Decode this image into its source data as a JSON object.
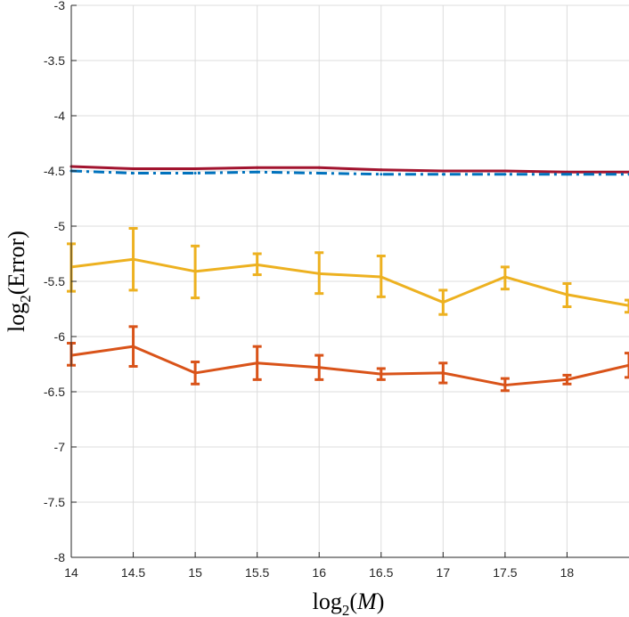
{
  "chart_data": {
    "type": "line",
    "title": "",
    "xlabel": "log2(M)",
    "ylabel": "log2(Error)",
    "xlabel_parts": {
      "fn": "log",
      "sub": "2",
      "open": "(",
      "var": "M",
      "close": ")"
    },
    "ylabel_parts": {
      "fn": "log",
      "sub": "2",
      "open": "(",
      "var": "Error",
      "close": ")"
    },
    "xlim": [
      14,
      18.5
    ],
    "ylim": [
      -8,
      -3
    ],
    "grid": true,
    "xticks": [
      14,
      14.5,
      15,
      15.5,
      16,
      16.5,
      17,
      17.5,
      18
    ],
    "xtick_labels": [
      "14",
      "14.5",
      "15",
      "15.5",
      "16",
      "16.5",
      "17",
      "17.5",
      "18"
    ],
    "yticks": [
      -3,
      -3.5,
      -4,
      -4.5,
      -5,
      -5.5,
      -6,
      -6.5,
      -7,
      -7.5,
      -8
    ],
    "ytick_labels": [
      "-3",
      "-3.5",
      "-4",
      "-4.5",
      "-5",
      "-5.5",
      "-6",
      "-6.5",
      "-7",
      "-7.5",
      "-8"
    ],
    "x": [
      14,
      14.5,
      15,
      15.5,
      16,
      16.5,
      17,
      17.5,
      18,
      18.5
    ],
    "series": [
      {
        "name": "series-dark-red",
        "color": "#A2142F",
        "style": "solid",
        "values": [
          -4.46,
          -4.48,
          -4.48,
          -4.47,
          -4.47,
          -4.49,
          -4.5,
          -4.5,
          -4.51,
          -4.51
        ]
      },
      {
        "name": "series-blue-dashdot",
        "color": "#0072BD",
        "style": "dashdot",
        "values": [
          -4.5,
          -4.52,
          -4.52,
          -4.51,
          -4.52,
          -4.53,
          -4.53,
          -4.53,
          -4.53,
          -4.53
        ]
      },
      {
        "name": "series-yellow",
        "color": "#EDB120",
        "style": "solid",
        "values": [
          -5.37,
          -5.3,
          -5.41,
          -5.35,
          -5.43,
          -5.46,
          -5.69,
          -5.46,
          -5.62,
          -5.72
        ],
        "err_low": [
          -5.59,
          -5.58,
          -5.65,
          -5.44,
          -5.61,
          -5.64,
          -5.8,
          -5.57,
          -5.73,
          -5.78
        ],
        "err_high": [
          -5.16,
          -5.02,
          -5.18,
          -5.25,
          -5.24,
          -5.27,
          -5.58,
          -5.37,
          -5.52,
          -5.67
        ]
      },
      {
        "name": "series-orange",
        "color": "#D95319",
        "style": "solid",
        "values": [
          -6.17,
          -6.09,
          -6.33,
          -6.24,
          -6.28,
          -6.34,
          -6.33,
          -6.44,
          -6.39,
          -6.26
        ],
        "err_low": [
          -6.26,
          -6.27,
          -6.43,
          -6.39,
          -6.39,
          -6.39,
          -6.42,
          -6.49,
          -6.43,
          -6.37
        ],
        "err_high": [
          -6.06,
          -5.91,
          -6.23,
          -6.09,
          -6.17,
          -6.29,
          -6.24,
          -6.38,
          -6.35,
          -6.15
        ]
      }
    ]
  }
}
